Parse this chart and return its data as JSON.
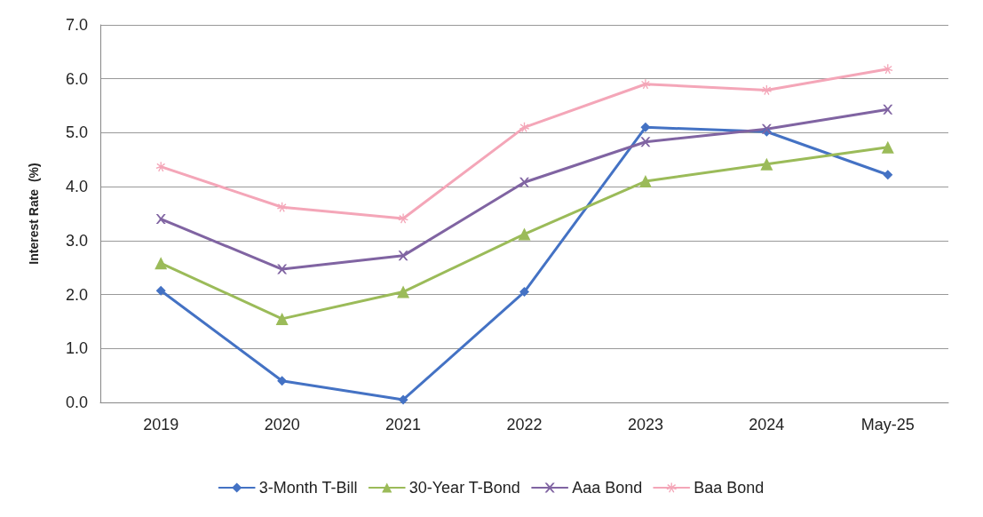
{
  "chart_data": {
    "type": "line",
    "ylabel": "Interest Rate  (%)",
    "categories": [
      "2019",
      "2020",
      "2021",
      "2022",
      "2023",
      "2024",
      "May-25"
    ],
    "series": [
      {
        "name": "3-Month T-Bill",
        "color": "#4472c4",
        "marker": "diamond",
        "values": [
          2.07,
          0.4,
          0.05,
          2.05,
          5.1,
          5.02,
          4.22
        ]
      },
      {
        "name": "30-Year T-Bond",
        "color": "#9bbb59",
        "marker": "triangle",
        "values": [
          2.58,
          1.55,
          2.05,
          3.12,
          4.1,
          4.42,
          4.73
        ]
      },
      {
        "name": "Aaa Bond",
        "color": "#8064a2",
        "marker": "cross",
        "values": [
          3.4,
          2.47,
          2.72,
          4.08,
          4.83,
          5.07,
          5.43
        ]
      },
      {
        "name": "Baa Bond",
        "color": "#f4a6b8",
        "marker": "star",
        "values": [
          4.37,
          3.62,
          3.41,
          5.1,
          5.9,
          5.79,
          6.18
        ]
      }
    ],
    "ylim": [
      0,
      7
    ],
    "yticks": [
      {
        "value": 0,
        "label": "0.0"
      },
      {
        "value": 1,
        "label": "1.0"
      },
      {
        "value": 2,
        "label": "2.0"
      },
      {
        "value": 3,
        "label": "3.0"
      },
      {
        "value": 4,
        "label": "4.0"
      },
      {
        "value": 5,
        "label": "5.0"
      },
      {
        "value": 6,
        "label": "6.0"
      },
      {
        "value": 7,
        "label": "7.0"
      }
    ],
    "grid": "y",
    "legend": "bottom",
    "line_style": "solid"
  }
}
